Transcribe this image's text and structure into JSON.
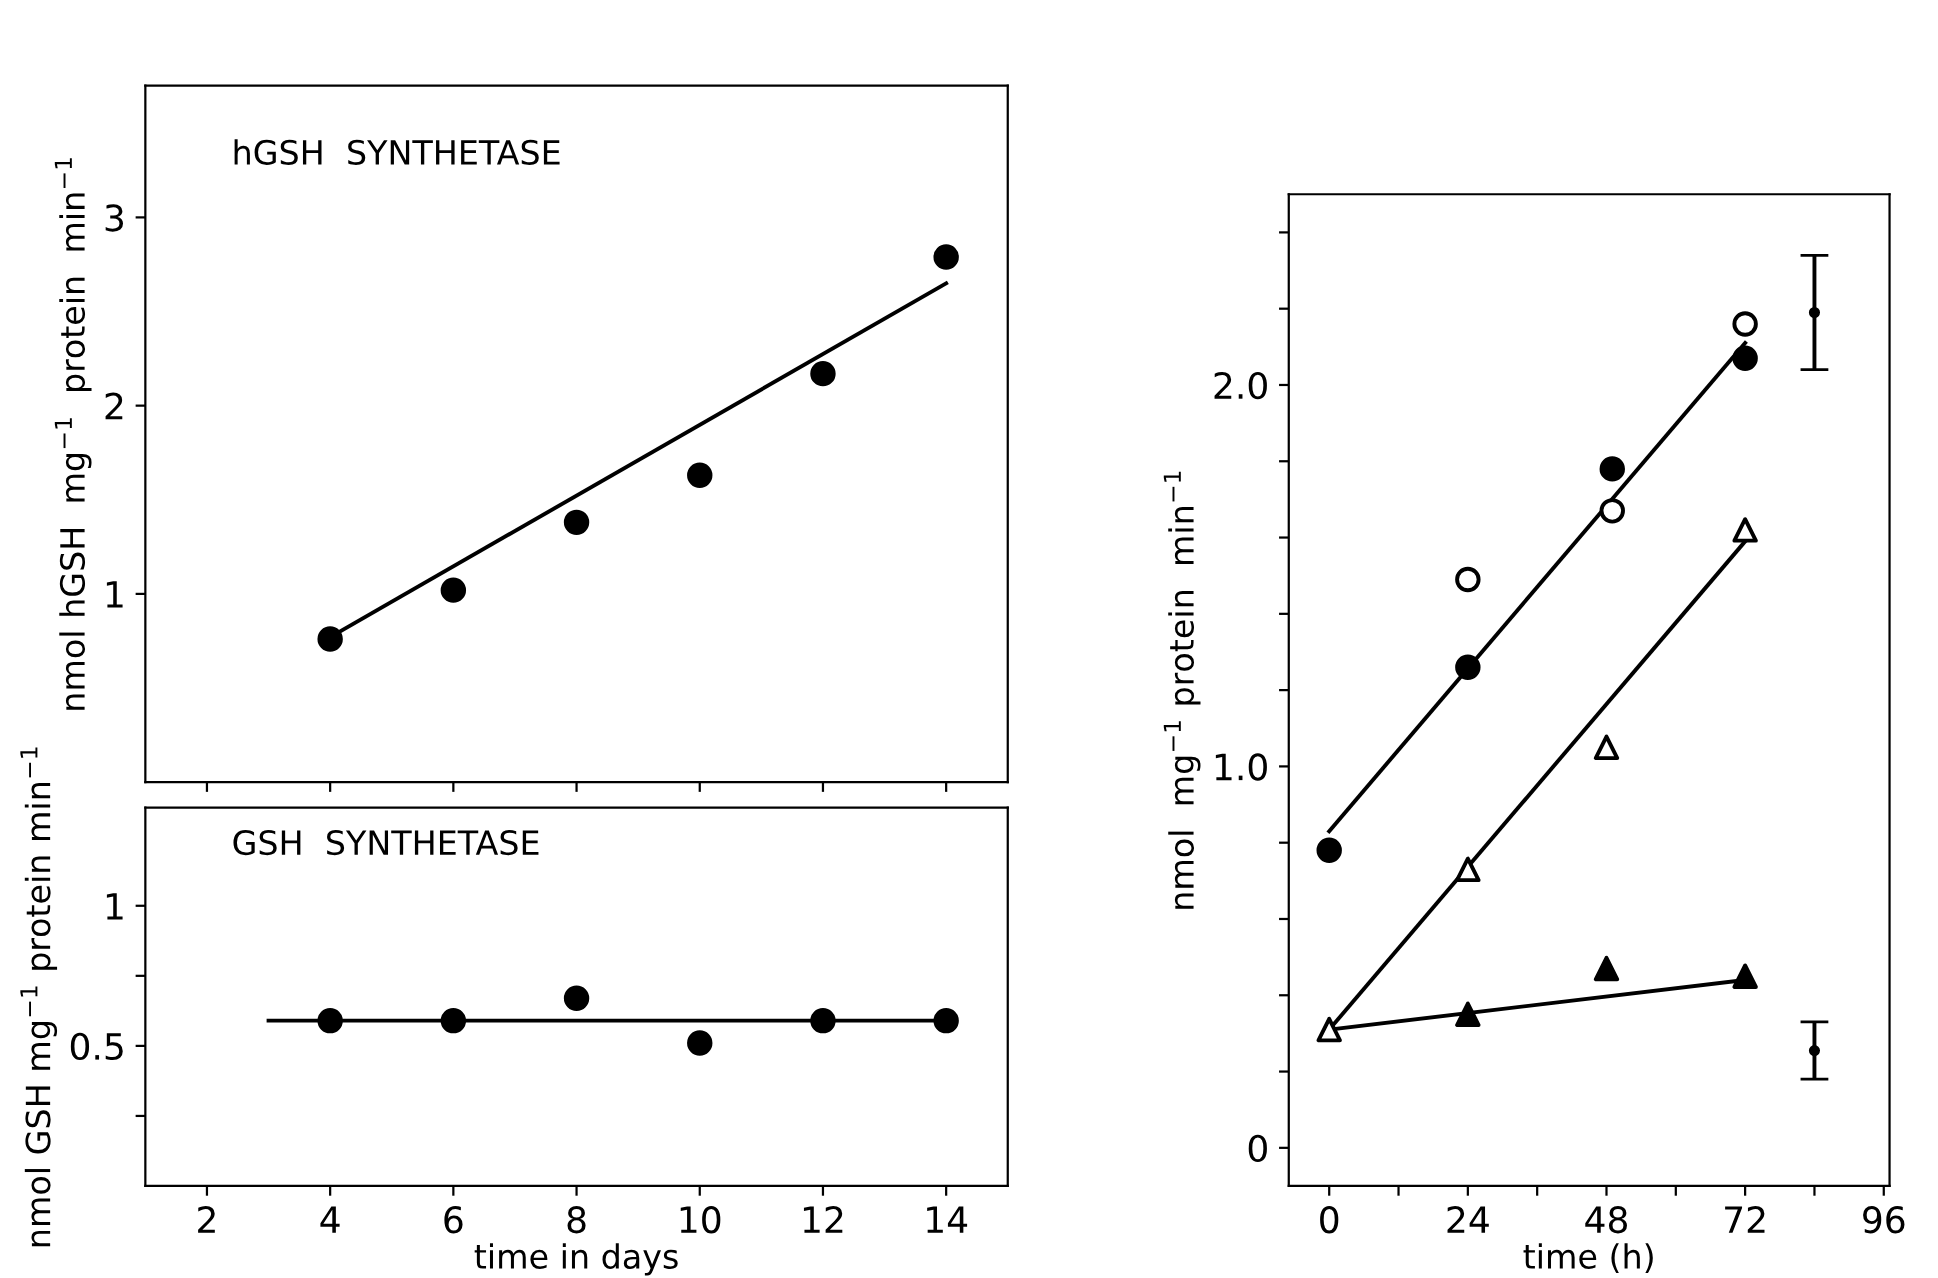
{
  "chart_data": [
    {
      "type": "scatter",
      "ylabel": "nmol hGSH  mg$^{−1}$  protein  min$^{−1}$",
      "annotations": [
        "hGSH  SYNTHETASE"
      ],
      "xlim": [
        1,
        15
      ],
      "ylim": [
        0,
        3.7
      ],
      "xticks": [
        2,
        4,
        6,
        8,
        10,
        12,
        14
      ],
      "yticks": [
        1,
        2,
        3
      ],
      "tick_labels": "y",
      "series": [
        {
          "marker": "circle",
          "color": "#000000",
          "x": [
            4,
            6,
            8,
            10,
            12,
            14
          ],
          "values": [
            0.76,
            1.02,
            1.38,
            1.63,
            2.17,
            2.79
          ]
        },
        {
          "type": "line",
          "marker": "none",
          "color": "#000000",
          "x": [
            4,
            14
          ],
          "values": [
            0.77,
            2.65
          ]
        }
      ]
    },
    {
      "type": "scatter",
      "ylabel": "nmol GSH mg$^{−1}$ protein min$^{−1}$",
      "xlabel": "time in days",
      "annotations": [
        "GSH  SYNTHETASE"
      ],
      "xlim": [
        1,
        15
      ],
      "ylim": [
        0,
        1.35
      ],
      "xticks": [
        2,
        4,
        6,
        8,
        10,
        12,
        14
      ],
      "yticks": [
        {
          "value": 0.25,
          "label": null
        },
        0.5,
        {
          "value": 0.75,
          "label": null
        },
        1
      ],
      "series": [
        {
          "marker": "circle",
          "color": "#000000",
          "x": [
            4,
            6,
            8,
            10,
            12,
            14
          ],
          "values": [
            0.59,
            0.59,
            0.67,
            0.51,
            0.59,
            0.59
          ]
        },
        {
          "type": "line",
          "marker": "none",
          "color": "#000000",
          "x": [
            3,
            14
          ],
          "values": [
            0.59,
            0.59
          ]
        }
      ]
    },
    {
      "type": "scatter",
      "ylabel": "nmol  mg$^{−1}$ protein  min$^{−1}$",
      "xlabel": "time (h)",
      "xlim": [
        -7,
        97
      ],
      "ylim": [
        -0.1,
        2.5
      ],
      "xticks": [
        0,
        {
          "value": 12,
          "label": null
        },
        24,
        {
          "value": 36,
          "label": null
        },
        48,
        {
          "value": 60,
          "label": null
        },
        72,
        {
          "value": 84,
          "label": null
        },
        96
      ],
      "yticks": [
        0,
        {
          "value": 0.2,
          "label": null
        },
        {
          "value": 0.4,
          "label": null
        },
        {
          "value": 0.6,
          "label": null
        },
        {
          "value": 0.8,
          "label": null
        },
        {
          "value": 1,
          "label": "1.0"
        },
        {
          "value": 1.2,
          "label": null
        },
        {
          "value": 1.4,
          "label": null
        },
        {
          "value": 1.6,
          "label": null
        },
        {
          "value": 1.8,
          "label": null
        },
        {
          "value": 2,
          "label": "2.0"
        },
        {
          "value": 2.2,
          "label": null
        },
        {
          "value": 2.4,
          "label": null
        }
      ],
      "series": [
        {
          "marker": "circle",
          "color": "#ffffff",
          "x": [
            24,
            49,
            72
          ],
          "values": [
            1.49,
            1.67,
            2.16
          ]
        },
        {
          "marker": "circle",
          "color": "#000000",
          "x": [
            0,
            24,
            49,
            72
          ],
          "values": [
            0.78,
            1.26,
            1.78,
            2.07
          ]
        },
        {
          "marker": "triangle",
          "color": "#ffffff",
          "x": [
            0,
            24,
            48,
            72
          ],
          "values": [
            0.31,
            0.73,
            1.05,
            1.62
          ]
        },
        {
          "marker": "triangle",
          "color": "#000000",
          "x": [
            24,
            48,
            72
          ],
          "values": [
            0.35,
            0.47,
            0.45
          ]
        },
        {
          "type": "line",
          "marker": "none",
          "color": "#000000",
          "x": [
            0,
            72
          ],
          "values": [
            0.83,
            2.11
          ]
        },
        {
          "type": "line",
          "marker": "none",
          "color": "#000000",
          "x": [
            0,
            72
          ],
          "values": [
            0.31,
            1.59
          ]
        },
        {
          "type": "line",
          "marker": "none",
          "color": "#000000",
          "x": [
            0,
            72
          ],
          "values": [
            0.31,
            0.44
          ]
        },
        {
          "color": "#000000",
          "x": [
            84,
            84
          ],
          "values": [
            2.19,
            0.255
          ],
          "errors": [
            0.15,
            0.075
          ]
        }
      ]
    }
  ]
}
